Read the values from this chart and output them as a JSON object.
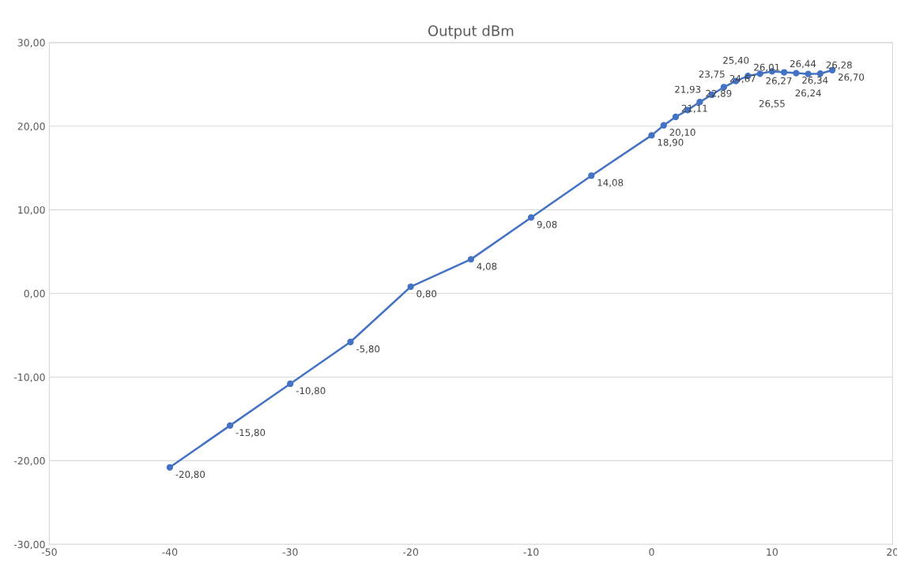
{
  "chart_data": {
    "type": "line",
    "title": "Output dBm",
    "x": [
      -40,
      -35,
      -30,
      -25,
      -20,
      -15,
      -10,
      -5,
      0,
      1,
      2,
      3,
      4,
      5,
      6,
      7,
      8,
      9,
      10,
      11,
      12,
      13,
      14,
      15
    ],
    "series": [
      {
        "color": "#4472c4",
        "values": [
          -20.8,
          -15.8,
          -10.8,
          -5.8,
          0.8,
          4.08,
          9.08,
          14.08,
          18.9,
          20.1,
          21.11,
          21.93,
          22.89,
          23.75,
          24.67,
          25.4,
          26.01,
          26.27,
          26.55,
          26.44,
          26.34,
          26.24,
          26.28,
          26.7
        ],
        "value_labels": [
          "-20,80",
          "-15,80",
          "-10,80",
          "-5,80",
          "0,80",
          "4,08",
          "9,08",
          "14,08",
          "18,90",
          "20,10",
          "21,11",
          "21,93",
          "22,89",
          "23,75",
          "24,67",
          "25,40",
          "26,01",
          "26,27",
          "26,55",
          "26,44",
          "26,34",
          "26,24",
          "26,28",
          "26,70"
        ]
      }
    ],
    "xlim": [
      -50,
      20
    ],
    "xticks": [
      -50,
      -40,
      -30,
      -20,
      -10,
      0,
      10,
      20
    ],
    "ylim": [
      -30,
      30
    ],
    "yticks": [
      {
        "value": -30,
        "label": "-30,00"
      },
      {
        "value": -20,
        "label": "-20,00"
      },
      {
        "value": -10,
        "label": "-10,00"
      },
      {
        "value": 0,
        "label": "0,00"
      },
      {
        "value": 10,
        "label": "10,00"
      },
      {
        "value": 20,
        "label": "20,00"
      },
      {
        "value": 30,
        "label": "30,00"
      }
    ],
    "grid": "y",
    "marker": "circle",
    "line_style": "solid"
  }
}
